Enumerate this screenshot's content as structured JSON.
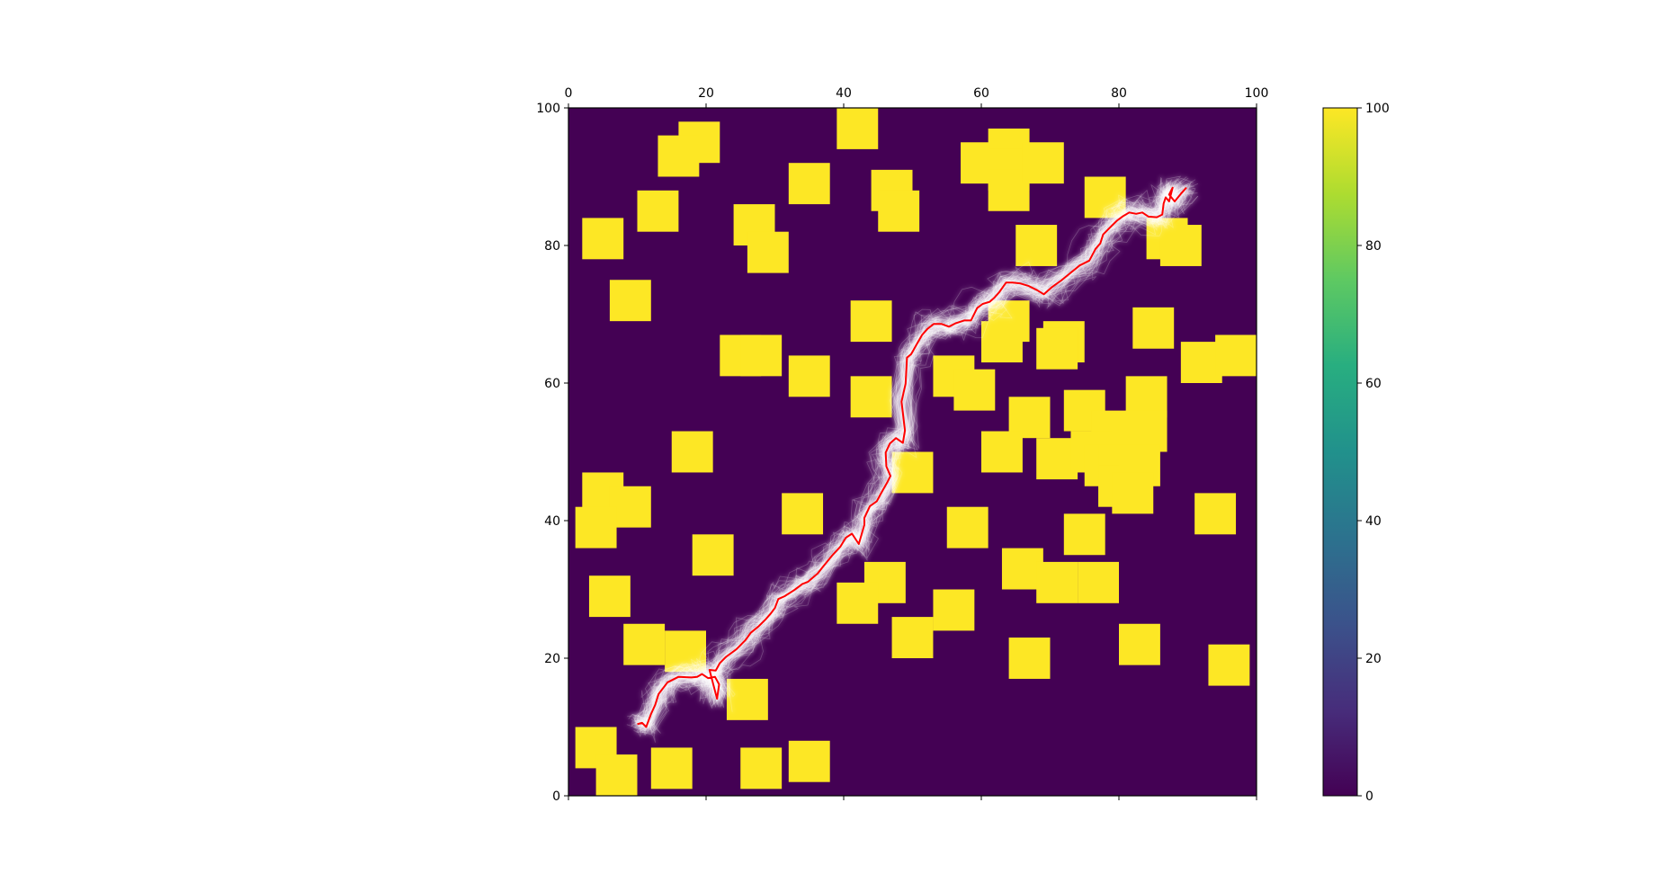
{
  "chart_data": {
    "type": "heatmap",
    "title": "",
    "xlabel": "",
    "ylabel": "",
    "xlim": [
      0,
      100
    ],
    "ylim": [
      0,
      100
    ],
    "x_ticks": [
      "0",
      "20",
      "40",
      "60",
      "80",
      "100"
    ],
    "y_ticks": [
      "0",
      "20",
      "40",
      "60",
      "80",
      "100"
    ],
    "x_axis_position": "top",
    "grid": false,
    "colormap": "viridis",
    "colorbar": {
      "range": [
        0,
        100
      ],
      "ticks": [
        "0",
        "20",
        "40",
        "60",
        "80",
        "100"
      ],
      "colors": [
        "#440154",
        "#3b528b",
        "#21918c",
        "#5ec962",
        "#fde725"
      ]
    },
    "background_color": "#440154",
    "obstacle_color": "#fde725",
    "obstacle_value": 100,
    "obstacle_size": 6,
    "obstacle_centers": [
      [
        19,
        95
      ],
      [
        42,
        97
      ],
      [
        16,
        93
      ],
      [
        35,
        89
      ],
      [
        47,
        88
      ],
      [
        48,
        85
      ],
      [
        60,
        92
      ],
      [
        64,
        94
      ],
      [
        64,
        91
      ],
      [
        64,
        88
      ],
      [
        69,
        92
      ],
      [
        78,
        87
      ],
      [
        13,
        85
      ],
      [
        27,
        83
      ],
      [
        29,
        79
      ],
      [
        5,
        81
      ],
      [
        68,
        80
      ],
      [
        87,
        81
      ],
      [
        89,
        80
      ],
      [
        9,
        72
      ],
      [
        44,
        69
      ],
      [
        64,
        69
      ],
      [
        72,
        66
      ],
      [
        63,
        66
      ],
      [
        71,
        65
      ],
      [
        85,
        68
      ],
      [
        25,
        64
      ],
      [
        28,
        64
      ],
      [
        92,
        63
      ],
      [
        97,
        64
      ],
      [
        35,
        61
      ],
      [
        56,
        61
      ],
      [
        59,
        59
      ],
      [
        44,
        58
      ],
      [
        75,
        56
      ],
      [
        67,
        55
      ],
      [
        79,
        53
      ],
      [
        84,
        58
      ],
      [
        84,
        53
      ],
      [
        18,
        50
      ],
      [
        63,
        50
      ],
      [
        71,
        49
      ],
      [
        76,
        50
      ],
      [
        78,
        48
      ],
      [
        80,
        48
      ],
      [
        80,
        45
      ],
      [
        83,
        48
      ],
      [
        82,
        44
      ],
      [
        50,
        47
      ],
      [
        5,
        44
      ],
      [
        9,
        42
      ],
      [
        4,
        39
      ],
      [
        34,
        41
      ],
      [
        58,
        39
      ],
      [
        75,
        38
      ],
      [
        94,
        41
      ],
      [
        21,
        35
      ],
      [
        66,
        33
      ],
      [
        71,
        31
      ],
      [
        77,
        31
      ],
      [
        46,
        31
      ],
      [
        42,
        28
      ],
      [
        56,
        27
      ],
      [
        6,
        29
      ],
      [
        11,
        22
      ],
      [
        17,
        21
      ],
      [
        50,
        23
      ],
      [
        83,
        22
      ],
      [
        67,
        20
      ],
      [
        96,
        19
      ],
      [
        26,
        14
      ],
      [
        4,
        7
      ],
      [
        7,
        3
      ],
      [
        15,
        4
      ],
      [
        28,
        4
      ],
      [
        35,
        5
      ]
    ],
    "series": [
      {
        "type": "line",
        "color": "#ff0000",
        "x": [
          10,
          10.7,
          11.3,
          12,
          12.6,
          13.1,
          13.1,
          14.4,
          16,
          17.9,
          18.7,
          19.4,
          20.3,
          21.3,
          21.9,
          21.6,
          20.5,
          21.4,
          22,
          22.9,
          24.4,
          25.7,
          26.5,
          27.6,
          28.7,
          29.4,
          30,
          30.5,
          31.4,
          32.8,
          34,
          34.8,
          36.2,
          37,
          38.3,
          39.5,
          40.3,
          41.2,
          42.2,
          43,
          43,
          43.8,
          44.8,
          45.5,
          46.3,
          46.8,
          46.2,
          46.1,
          46.7,
          47.6,
          48.6,
          48.9,
          48.4,
          49,
          49.2,
          49.8,
          50.7,
          51.4,
          52.2,
          53.1,
          54.2,
          55.3,
          56.3,
          57.5,
          58.5,
          59.4,
          60.2,
          61.2,
          61.9,
          62.6,
          63.6,
          64.5,
          65.6,
          66.9,
          68.1,
          69.1,
          70.2,
          71.6,
          72.7,
          74.3,
          75.7,
          76.6,
          77.3,
          77.7,
          78.8,
          79.7,
          80.5,
          81.5,
          82.5,
          83.4,
          84.3,
          85.5,
          86.3,
          86.5,
          86.8,
          87.3,
          87.8,
          87.3,
          88.1,
          89,
          89.8
        ],
        "y": [
          10.4,
          10.6,
          10,
          11.9,
          13.2,
          14.8,
          14.8,
          16.5,
          17.3,
          17.2,
          17.3,
          17.7,
          17.1,
          17.3,
          16.2,
          14.1,
          18.3,
          18.2,
          19.3,
          20.2,
          21.3,
          22.6,
          23.7,
          24.6,
          25.7,
          26.5,
          27.3,
          28.6,
          29,
          29.9,
          30.8,
          31.1,
          32.3,
          33.3,
          34.9,
          36.2,
          37.5,
          38.1,
          36.6,
          39.4,
          40.4,
          42.1,
          42.8,
          44.1,
          45.5,
          46.5,
          47.9,
          49.9,
          51.2,
          52,
          51.3,
          53.1,
          57.3,
          59.9,
          63.7,
          64.2,
          65.8,
          67,
          67.9,
          68.6,
          68.6,
          68.2,
          68.7,
          69.1,
          69.1,
          70.9,
          71.5,
          71.8,
          72.4,
          73.2,
          74.6,
          74.6,
          74.5,
          74.1,
          73.5,
          72.9,
          73.9,
          74.9,
          75.8,
          77.1,
          77.8,
          79.5,
          80.3,
          81.6,
          82.7,
          83.6,
          84.2,
          84.8,
          84.6,
          84.8,
          84.2,
          84.1,
          84.5,
          86.1,
          87,
          86.4,
          88.4,
          87.4,
          86.4,
          87.5,
          88.4
        ]
      },
      {
        "type": "sampled_trajectories",
        "color": "#ffffff",
        "count": 60,
        "follows": "red path"
      }
    ]
  }
}
